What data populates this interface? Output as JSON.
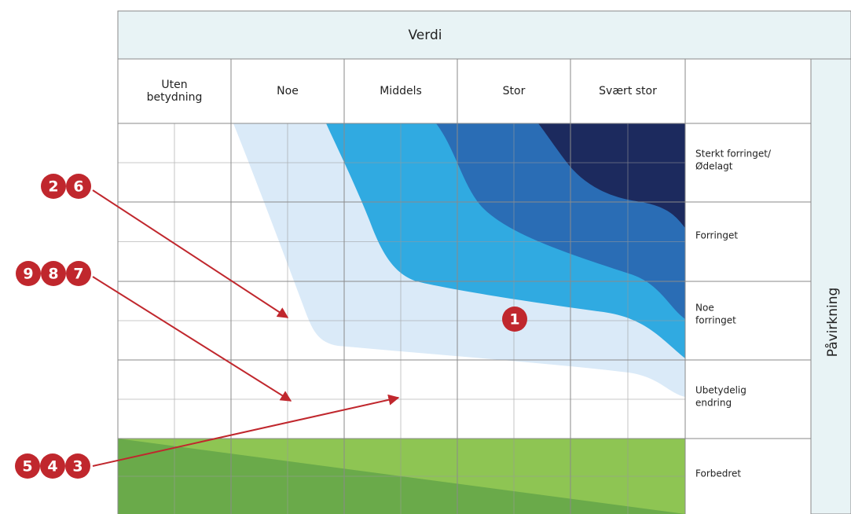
{
  "header": {
    "title": "Verdi",
    "side_title": "Påvirkning"
  },
  "columns": [
    [
      "Uten",
      "betydning"
    ],
    [
      "Noe"
    ],
    [
      "Middels"
    ],
    [
      "Stor"
    ],
    [
      "Svært stor"
    ]
  ],
  "rows": [
    [
      "Sterkt forringet/",
      "Ødelagt"
    ],
    [
      "Forringet"
    ],
    [
      "Noe",
      "forringet"
    ],
    [
      "Ubetydelig",
      "endring"
    ],
    [
      "Forbedret"
    ]
  ],
  "markers": {
    "center": "1",
    "group_a": [
      "2",
      "6"
    ],
    "group_b": [
      "9",
      "8",
      "7"
    ],
    "group_c": [
      "5",
      "4",
      "3"
    ]
  }
}
